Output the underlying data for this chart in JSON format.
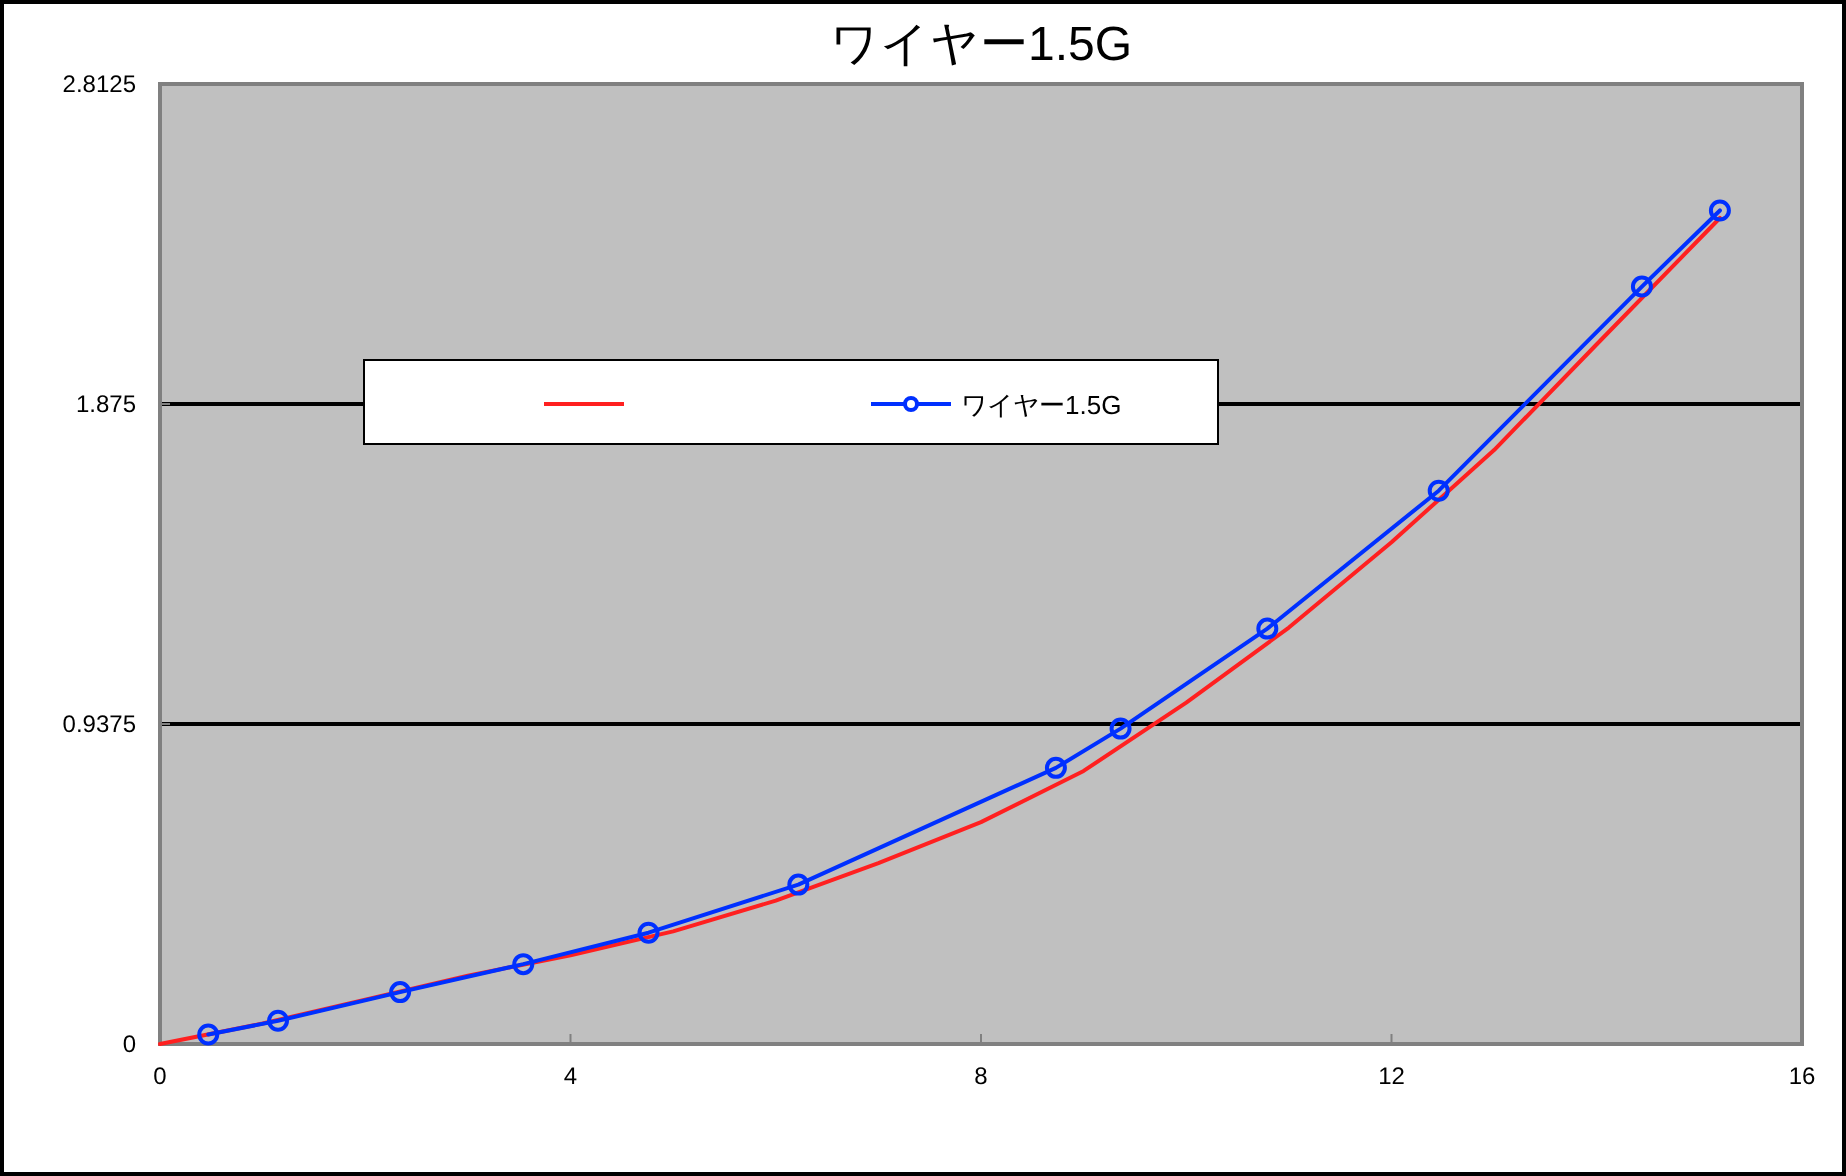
{
  "chart_data": {
    "type": "line",
    "title": "ワイヤー1.5G",
    "xlim": [
      0,
      16
    ],
    "xticks": [
      0,
      4,
      8,
      12,
      16
    ],
    "ylim": [
      0,
      2.8125
    ],
    "yticks": [
      0,
      0.9375,
      1.875,
      2.8125
    ],
    "grid": "y",
    "legend": "top",
    "series": [
      {
        "color": "#ff2020",
        "marker": "none",
        "x": [
          0,
          1,
          2,
          3,
          4,
          5,
          6,
          7,
          8,
          9,
          10,
          11,
          12,
          13,
          14,
          15.2
        ],
        "values": [
          0,
          0.06,
          0.13,
          0.2,
          0.26,
          0.33,
          0.42,
          0.53,
          0.65,
          0.8,
          1.0,
          1.22,
          1.47,
          1.74,
          2.05,
          2.42
        ]
      },
      {
        "name": "ワイヤー1.5G",
        "color": "#0030ff",
        "marker": "circle",
        "x": [
          0.47,
          1.15,
          2.34,
          3.54,
          4.76,
          6.22,
          8.73,
          9.36,
          10.79,
          12.46,
          14.44,
          15.2
        ],
        "values": [
          0.028,
          0.068,
          0.152,
          0.234,
          0.326,
          0.467,
          0.809,
          0.924,
          1.217,
          1.621,
          2.219,
          2.442
        ]
      }
    ]
  }
}
